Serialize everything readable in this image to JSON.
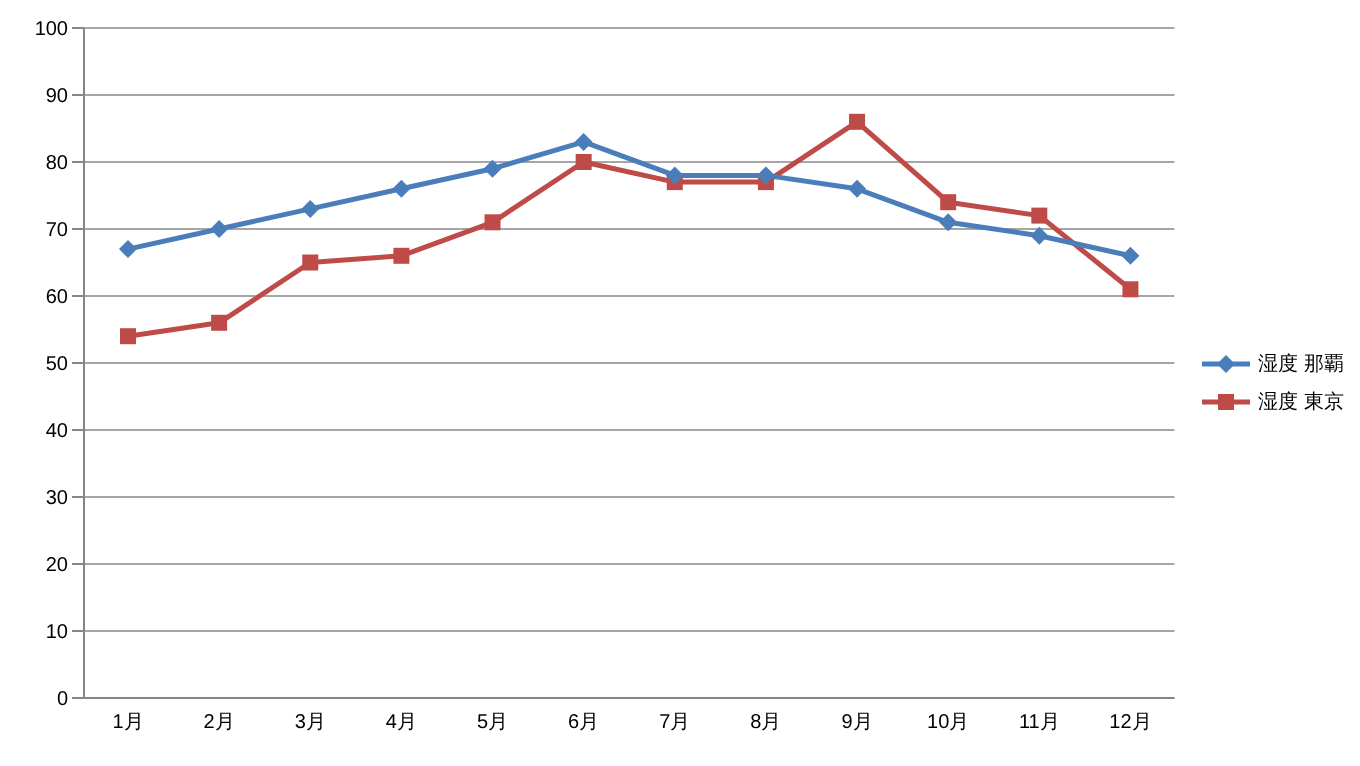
{
  "chart_data": {
    "type": "line",
    "categories": [
      "1月",
      "2月",
      "3月",
      "4月",
      "5月",
      "6月",
      "7月",
      "8月",
      "9月",
      "10月",
      "11月",
      "12月"
    ],
    "series": [
      {
        "name": "湿度 那覇",
        "color": "#4a7ebb",
        "marker": "diamond",
        "values": [
          67,
          70,
          73,
          76,
          79,
          83,
          78,
          78,
          76,
          71,
          69,
          66
        ]
      },
      {
        "name": "湿度 東京",
        "color": "#be4b48",
        "marker": "square",
        "values": [
          54,
          56,
          65,
          66,
          71,
          80,
          77,
          77,
          86,
          74,
          72,
          61
        ]
      }
    ],
    "ylim": [
      0,
      100
    ],
    "yticks": [
      0,
      10,
      20,
      30,
      40,
      50,
      60,
      70,
      80,
      90,
      100
    ],
    "grid": "y",
    "legend": "right",
    "line_style": "solid"
  }
}
